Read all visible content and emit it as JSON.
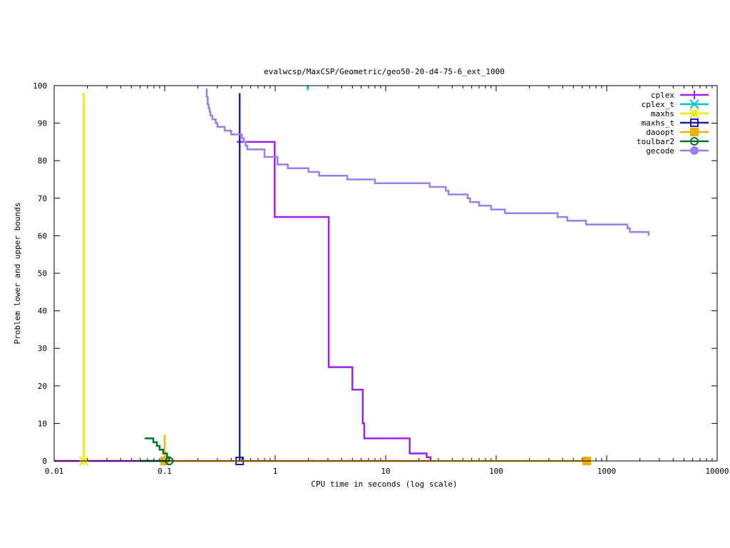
{
  "chart_data": {
    "type": "line",
    "title": "evalwcsp/MaxCSP/Geometric/geo50-20-d4-75-6_ext_1000",
    "xlabel": "CPU time in seconds (log scale)",
    "ylabel": "Problem lower and upper bounds",
    "xscale": "log",
    "xlim": [
      0.01,
      10000
    ],
    "ylim": [
      0,
      100
    ],
    "grid": false,
    "legend_position": "top-right",
    "x_ticks": [
      {
        "value": 0.01,
        "label": "0.01"
      },
      {
        "value": 0.1,
        "label": "0.1"
      },
      {
        "value": 1,
        "label": "1"
      },
      {
        "value": 10,
        "label": "10"
      },
      {
        "value": 100,
        "label": "100"
      },
      {
        "value": 1000,
        "label": "1000"
      },
      {
        "value": 10000,
        "label": "10000"
      }
    ],
    "y_ticks": [
      {
        "value": 0,
        "label": "0"
      },
      {
        "value": 10,
        "label": "10"
      },
      {
        "value": 20,
        "label": "20"
      },
      {
        "value": 30,
        "label": "30"
      },
      {
        "value": 40,
        "label": "40"
      },
      {
        "value": 50,
        "label": "50"
      },
      {
        "value": 60,
        "label": "60"
      },
      {
        "value": 70,
        "label": "70"
      },
      {
        "value": 80,
        "label": "80"
      },
      {
        "value": 90,
        "label": "90"
      },
      {
        "value": 100,
        "label": "100"
      }
    ],
    "series": [
      {
        "name": "cplex",
        "color": "#a020f0",
        "marker": "plus",
        "lines": [
          [
            [
              0.45,
              85
            ],
            [
              0.99,
              85
            ],
            [
              0.99,
              65
            ],
            [
              3.05,
              65
            ],
            [
              3.05,
              25
            ],
            [
              5.0,
              25
            ],
            [
              5.0,
              19
            ],
            [
              6.2,
              19
            ],
            [
              6.2,
              10
            ],
            [
              6.4,
              10
            ],
            [
              6.4,
              6
            ],
            [
              16.5,
              6
            ],
            [
              16.5,
              2
            ],
            [
              23.5,
              2
            ],
            [
              23.5,
              1
            ],
            [
              25.5,
              1
            ],
            [
              25.5,
              0
            ]
          ],
          [
            [
              0.01,
              0
            ],
            [
              25.5,
              0
            ]
          ]
        ],
        "markers": []
      },
      {
        "name": "cplex_t",
        "color": "#00c8c8",
        "marker": "x",
        "lines": [
          [
            [
              1.97,
              100
            ],
            [
              1.97,
              98.8
            ]
          ]
        ],
        "markers": []
      },
      {
        "name": "maxhs",
        "color": "#e8e800",
        "marker": "star",
        "lines": [
          [
            [
              0.0185,
              98
            ],
            [
              0.0185,
              0
            ]
          ]
        ],
        "markers": [
          [
            0.0185,
            0
          ]
        ]
      },
      {
        "name": "maxhs_t",
        "color": "#1e22aa",
        "marker": "square",
        "lines": [
          [
            [
              0.477,
              98
            ],
            [
              0.477,
              0
            ]
          ]
        ],
        "markers": [
          [
            0.477,
            0
          ]
        ]
      },
      {
        "name": "daoopt",
        "color": "#f0b000",
        "marker": "filled-square",
        "lines": [
          [
            [
              0.1,
              7
            ],
            [
              0.1,
              0
            ]
          ],
          [
            [
              0.1,
              0
            ],
            [
              660,
              0
            ]
          ]
        ],
        "markers": [
          [
            0.1,
            0
          ],
          [
            660,
            0
          ]
        ]
      },
      {
        "name": "toulbar2",
        "color": "#00752a",
        "marker": "circle",
        "lines": [
          [
            [
              0.066,
              6
            ],
            [
              0.079,
              6
            ],
            [
              0.079,
              5
            ],
            [
              0.085,
              5
            ],
            [
              0.085,
              4
            ],
            [
              0.09,
              4
            ],
            [
              0.09,
              3
            ],
            [
              0.097,
              3
            ],
            [
              0.097,
              2
            ],
            [
              0.105,
              2
            ],
            [
              0.105,
              1
            ],
            [
              0.11,
              1
            ],
            [
              0.11,
              0
            ]
          ],
          [
            [
              0.059,
              0
            ],
            [
              0.11,
              0
            ]
          ]
        ],
        "markers": [
          [
            0.11,
            0
          ]
        ]
      },
      {
        "name": "gecode",
        "color": "#9b7ef0",
        "marker": "filled-circle",
        "lines": [
          [
            [
              0.236,
              99
            ],
            [
              0.24,
              99
            ],
            [
              0.24,
              97
            ],
            [
              0.245,
              97
            ],
            [
              0.245,
              95
            ],
            [
              0.25,
              95
            ],
            [
              0.25,
              94
            ],
            [
              0.255,
              94
            ],
            [
              0.255,
              93
            ],
            [
              0.26,
              93
            ],
            [
              0.26,
              92
            ],
            [
              0.27,
              92
            ],
            [
              0.27,
              91
            ],
            [
              0.29,
              91
            ],
            [
              0.29,
              90
            ],
            [
              0.3,
              90
            ],
            [
              0.3,
              89
            ],
            [
              0.35,
              89
            ],
            [
              0.35,
              88
            ],
            [
              0.4,
              88
            ],
            [
              0.4,
              87
            ],
            [
              0.5,
              87
            ],
            [
              0.5,
              86
            ],
            [
              0.52,
              86
            ],
            [
              0.52,
              85
            ],
            [
              0.54,
              85
            ],
            [
              0.54,
              84
            ],
            [
              0.56,
              84
            ],
            [
              0.56,
              83
            ],
            [
              0.8,
              83
            ],
            [
              0.8,
              81
            ],
            [
              1.05,
              81
            ],
            [
              1.05,
              79
            ],
            [
              1.3,
              79
            ],
            [
              1.3,
              78
            ],
            [
              2.0,
              78
            ],
            [
              2.0,
              77
            ],
            [
              2.5,
              77
            ],
            [
              2.5,
              76
            ],
            [
              4.5,
              76
            ],
            [
              4.5,
              75
            ],
            [
              8,
              75
            ],
            [
              8,
              74
            ],
            [
              25,
              74
            ],
            [
              25,
              73
            ],
            [
              35,
              73
            ],
            [
              35,
              72
            ],
            [
              37,
              72
            ],
            [
              37,
              71
            ],
            [
              55,
              71
            ],
            [
              55,
              70
            ],
            [
              58,
              70
            ],
            [
              58,
              69
            ],
            [
              70,
              69
            ],
            [
              70,
              68
            ],
            [
              90,
              68
            ],
            [
              90,
              67
            ],
            [
              120,
              67
            ],
            [
              120,
              66
            ],
            [
              360,
              66
            ],
            [
              360,
              65
            ],
            [
              440,
              65
            ],
            [
              440,
              64
            ],
            [
              650,
              64
            ],
            [
              650,
              63
            ],
            [
              1540,
              63
            ],
            [
              1540,
              62
            ],
            [
              1620,
              62
            ],
            [
              1620,
              61
            ],
            [
              2400,
              61
            ],
            [
              2400,
              60
            ]
          ]
        ],
        "markers": []
      }
    ]
  }
}
